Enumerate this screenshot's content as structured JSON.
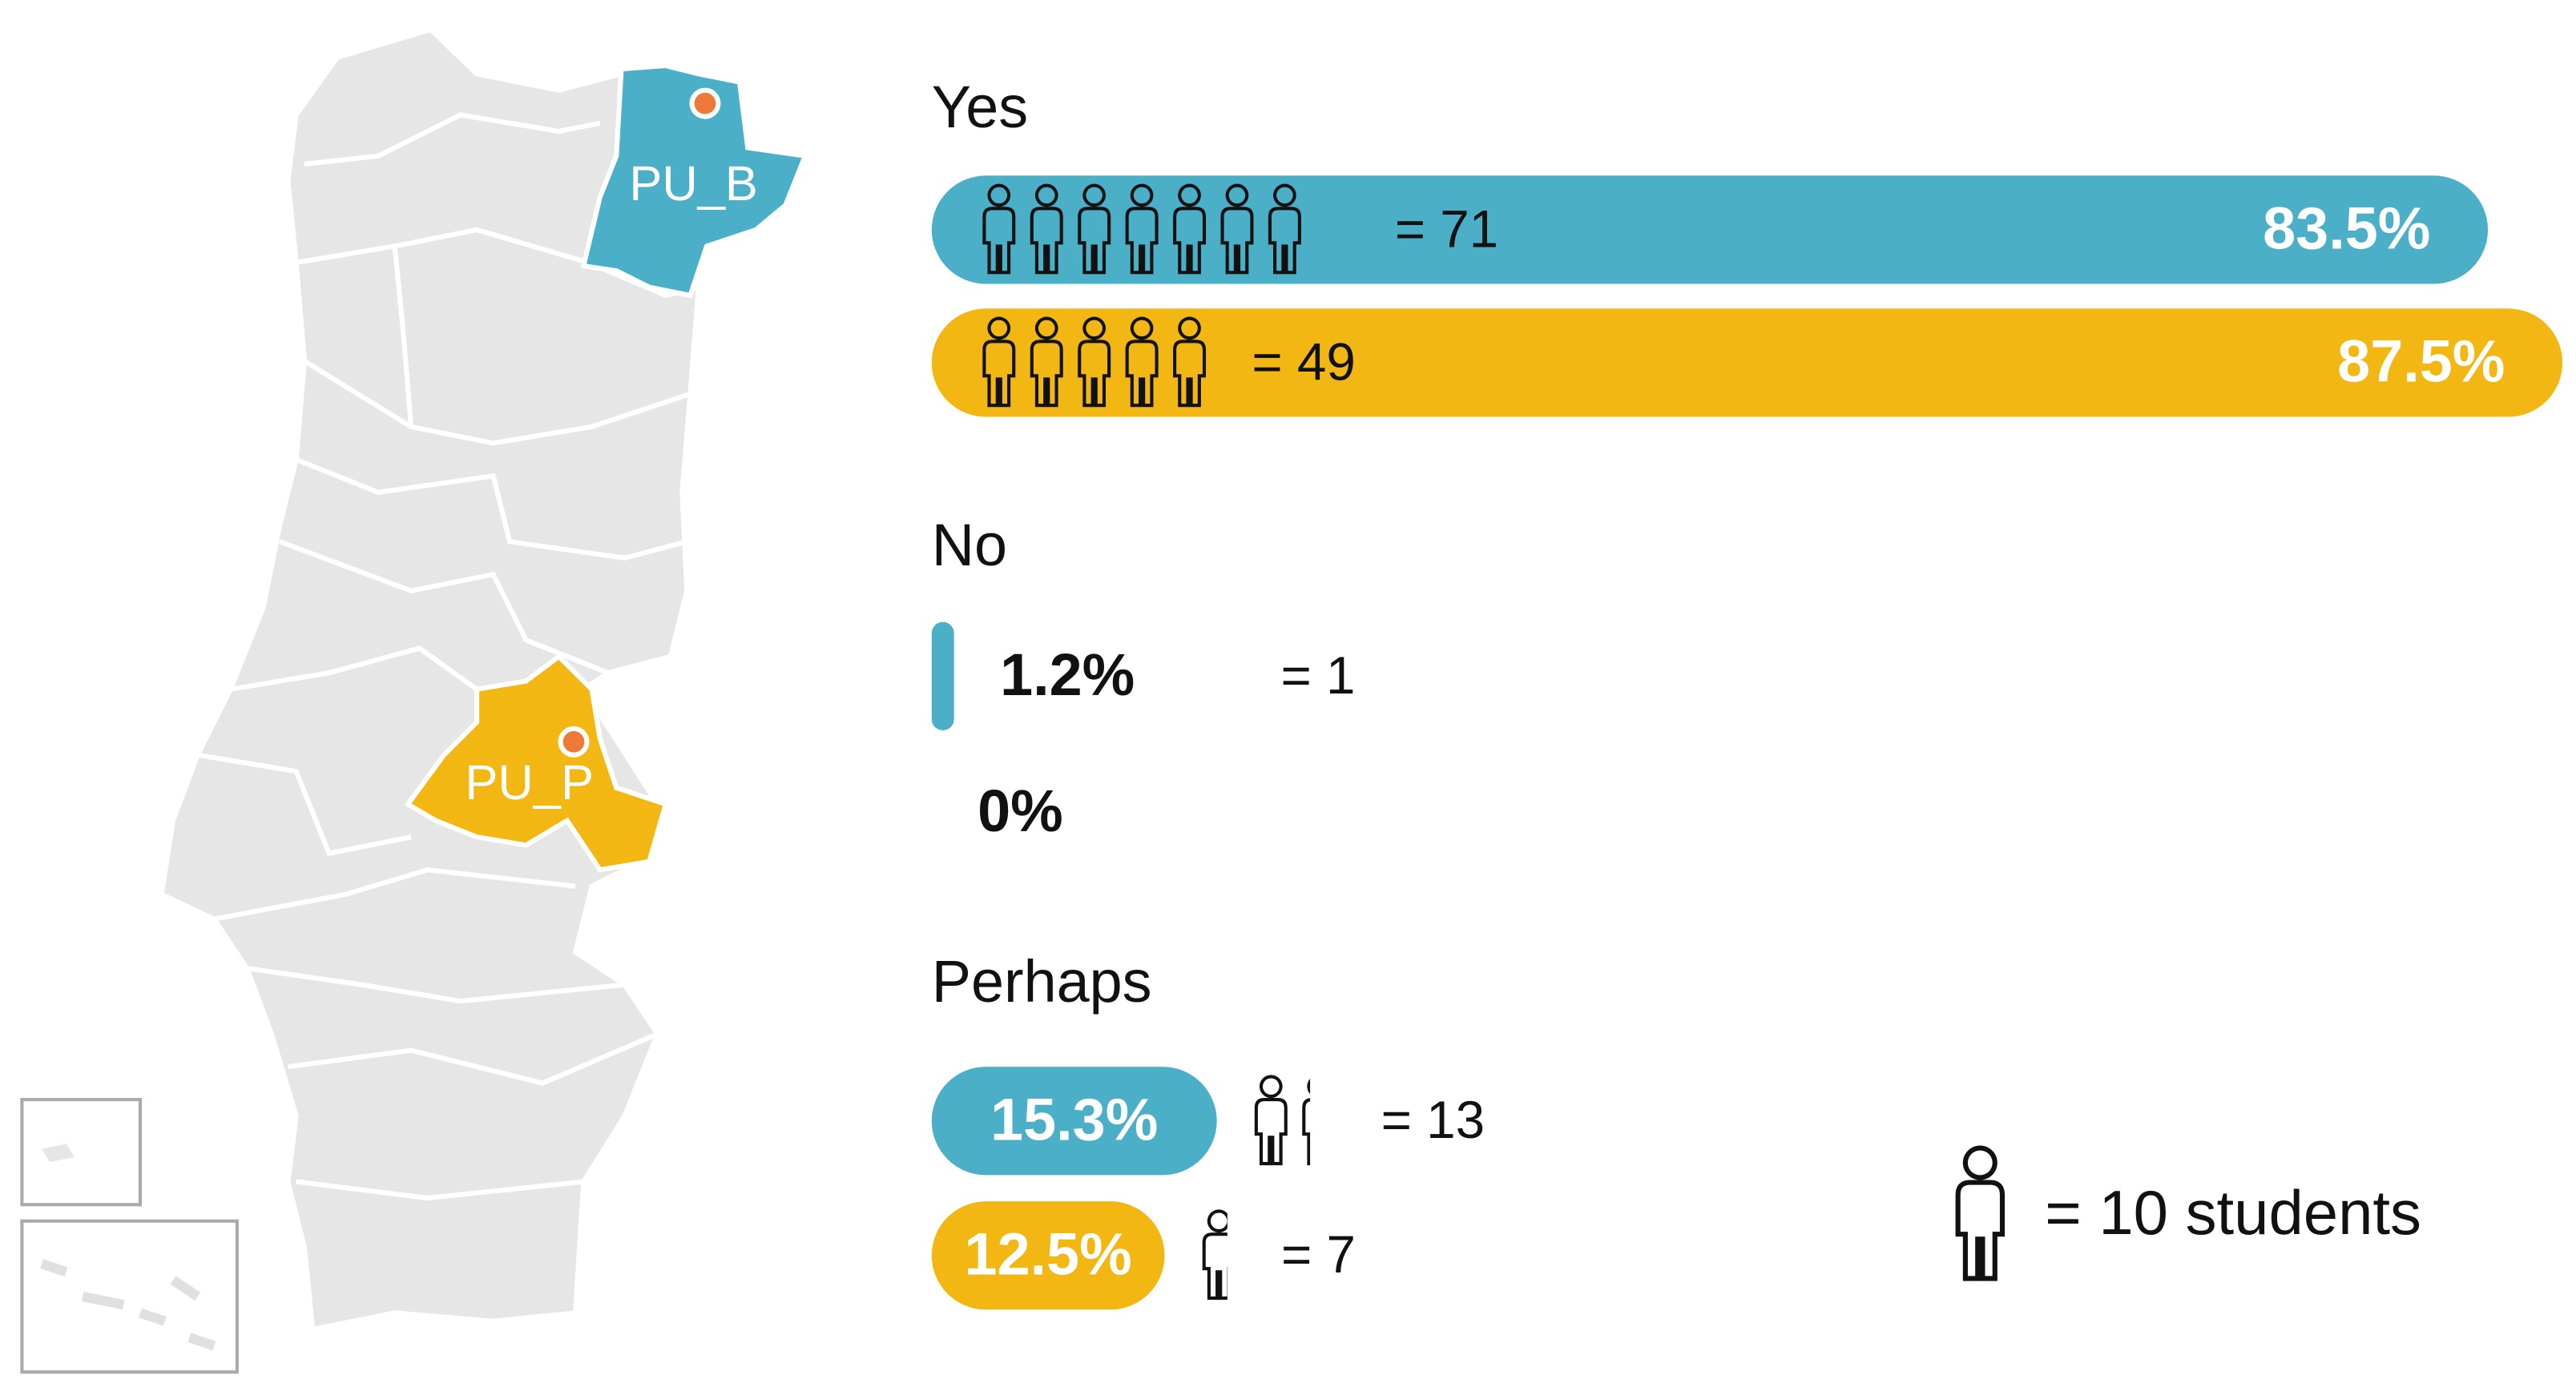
{
  "chart_data": {
    "type": "pictograph-bar",
    "categories": [
      "Yes",
      "No",
      "Perhaps"
    ],
    "series": [
      {
        "name": "PU_B",
        "color": "#4bafc8",
        "values": [
          83.5,
          1.2,
          15.3
        ],
        "value_labels": [
          "83.5%",
          "1.2%",
          "15.3%"
        ],
        "counts": [
          71,
          1,
          13
        ],
        "count_labels": [
          "= 71",
          "= 1",
          "= 13"
        ]
      },
      {
        "name": "PU_P",
        "color": "#f2b713",
        "values": [
          87.5,
          0,
          12.5
        ],
        "value_labels": [
          "87.5%",
          "0%",
          "12.5%"
        ],
        "counts": [
          49,
          0,
          7
        ],
        "count_labels": [
          "= 49",
          null,
          "= 7"
        ]
      }
    ],
    "xlim": [
      0,
      100
    ],
    "icon_unit": 10,
    "icon_legend": "= 10 students"
  }
}
